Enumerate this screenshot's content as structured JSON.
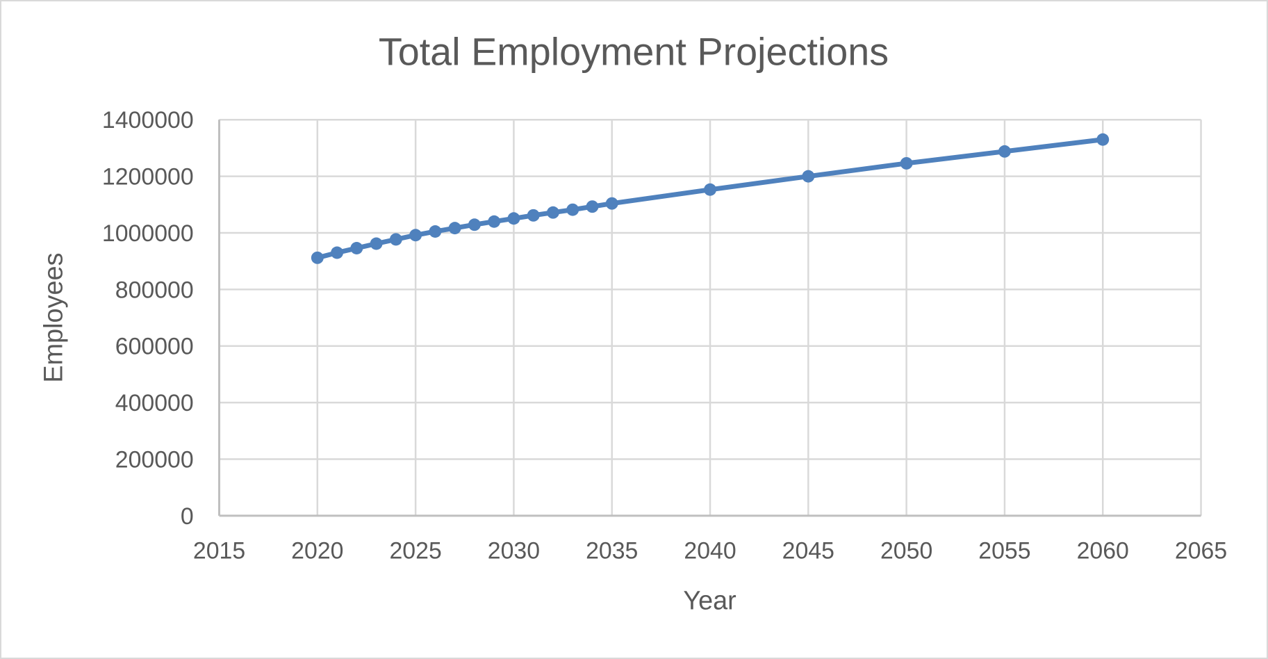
{
  "chart_data": {
    "type": "line",
    "title": "Total Employment Projections",
    "xlabel": "Year",
    "ylabel": "Employees",
    "x": [
      2020,
      2021,
      2022,
      2023,
      2024,
      2025,
      2026,
      2027,
      2028,
      2029,
      2030,
      2031,
      2032,
      2033,
      2034,
      2035,
      2040,
      2045,
      2050,
      2055,
      2060
    ],
    "values": [
      912000,
      930000,
      946000,
      962000,
      977000,
      992000,
      1005000,
      1017000,
      1029000,
      1040000,
      1051000,
      1062000,
      1072000,
      1082000,
      1093000,
      1104000,
      1153000,
      1200000,
      1246000,
      1288000,
      1330000
    ],
    "xlim": [
      2015,
      2065
    ],
    "ylim": [
      0,
      1400000
    ],
    "x_ticks": [
      2015,
      2020,
      2025,
      2030,
      2035,
      2040,
      2045,
      2050,
      2055,
      2060,
      2065
    ],
    "y_ticks": [
      0,
      200000,
      400000,
      600000,
      800000,
      1000000,
      1200000,
      1400000
    ],
    "grid": true,
    "legend": false,
    "marker": "circle",
    "line_width": 7,
    "marker_radius": 9,
    "colors": {
      "series": "#4F81BD",
      "text": "#595959",
      "gridline": "#D9D9D9",
      "axis_line": "#BFBFBF",
      "background": "#FFFFFF",
      "frame_border": "#D9D9D9"
    }
  }
}
